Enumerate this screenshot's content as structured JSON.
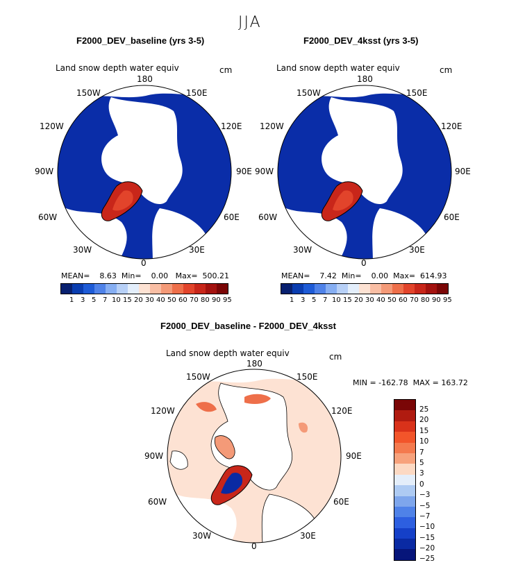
{
  "season": "JJA",
  "maps": [
    {
      "title": "F2000_DEV_baseline (yrs 3-5)",
      "variable": "Land snow depth water equiv",
      "unit": "cm",
      "stats": "MEAN=    8.63  Min=    0.00   Max=  500.21"
    },
    {
      "title": "F2000_DEV_4ksst (yrs 3-5)",
      "variable": "Land snow depth water equiv",
      "unit": "cm",
      "stats": "MEAN=    7.42  Min=    0.00  Max=  614.93"
    },
    {
      "title": "F2000_DEV_baseline - F2000_DEV_4ksst",
      "variable": "Land snow depth water equiv",
      "unit": "cm",
      "stats": "MIN = -162.78  MAX = 163.72"
    }
  ],
  "lon_labels": {
    "top": "180",
    "bottom": "0",
    "l1": "150W",
    "l2": "120W",
    "l3": "90W",
    "l4": "60W",
    "l5": "30W",
    "r1": "150E",
    "r2": "120E",
    "r3": "90E",
    "r4": "60E",
    "r5": "30E"
  },
  "colorbar_top": {
    "colors": [
      "#08206f",
      "#0a3db0",
      "#1e5bd6",
      "#4f82e8",
      "#86aef2",
      "#b7d0f7",
      "#e3eefb",
      "#fde2d3",
      "#f9bea4",
      "#f49a78",
      "#ee6f4a",
      "#e2442b",
      "#c8261a",
      "#a3120f",
      "#7a0606"
    ],
    "labels": [
      "1",
      "3",
      "5",
      "7",
      "10",
      "15",
      "20",
      "30",
      "40",
      "50",
      "60",
      "70",
      "80",
      "90",
      "95"
    ]
  },
  "colorbar_diff": {
    "colors": [
      "#7a0606",
      "#b01b10",
      "#d9321a",
      "#f2552a",
      "#f47a4e",
      "#f7a27c",
      "#fcd9c3",
      "#e4eefa",
      "#aecbf3",
      "#7ea6ec",
      "#4f82e8",
      "#2d5fe0",
      "#1540c8",
      "#0a2aa3",
      "#06157a"
    ],
    "labels": [
      "25",
      "20",
      "15",
      "10",
      "7",
      "5",
      "3",
      "0",
      "−3",
      "−5",
      "−7",
      "−10",
      "−15",
      "−20",
      "−25"
    ]
  },
  "colors": {
    "snow_blue": "#0a2da8",
    "diff_bg": "#fde2d3",
    "greenland_red": "#c8261a",
    "greenland_blue": "#0a2aa3"
  }
}
